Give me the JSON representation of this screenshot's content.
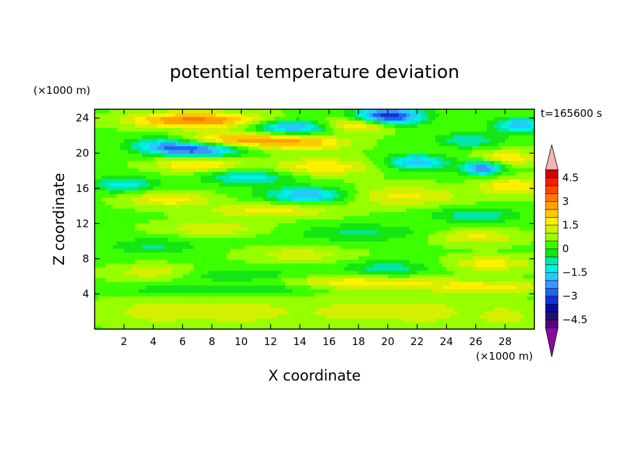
{
  "chart_data": {
    "type": "heatmap",
    "title": "potential temperature deviation",
    "xlabel": "X coordinate",
    "ylabel": "Z coordinate",
    "x_unit": "(×1000 m)",
    "y_unit": "(×1000 m)",
    "time_label": "t=165600 s",
    "xlim": [
      0,
      30
    ],
    "ylim": [
      0,
      25
    ],
    "x_ticks": [
      2,
      4,
      6,
      8,
      10,
      12,
      14,
      16,
      18,
      20,
      22,
      24,
      26,
      28
    ],
    "y_ticks": [
      4,
      8,
      12,
      16,
      20,
      24
    ],
    "colorbar": {
      "levels": [
        -5.0,
        -4.5,
        -4.0,
        -3.5,
        -3.0,
        -2.5,
        -2.0,
        -1.5,
        -1.0,
        -0.5,
        0.0,
        0.5,
        1.0,
        1.5,
        2.0,
        2.5,
        3.0,
        3.5,
        4.0,
        4.5,
        5.0
      ],
      "tick_labels": [
        "4.5",
        "3",
        "1.5",
        "0",
        "−1.5",
        "−3",
        "−4.5"
      ],
      "tick_values": [
        4.5,
        3,
        1.5,
        0,
        -1.5,
        -3,
        -4.5
      ],
      "colors": [
        "#5a0080",
        "#201070",
        "#0a0aa0",
        "#1432d2",
        "#1e64f0",
        "#3c96ff",
        "#28c8ff",
        "#00f0e6",
        "#00e6aa",
        "#14e614",
        "#3cff00",
        "#96ff00",
        "#d2f000",
        "#fff000",
        "#ffc800",
        "#ffa000",
        "#ff7800",
        "#ff4600",
        "#f01e00",
        "#d20000"
      ],
      "under_color": "#8c0aa0",
      "over_color": "#f5b4b4"
    },
    "features": [
      {
        "x": 20.0,
        "z": 24.2,
        "sx": 1.6,
        "sz": 0.7,
        "value": -4.0
      },
      {
        "x": 13.5,
        "z": 23.0,
        "sx": 2.0,
        "sz": 0.6,
        "value": -2.6
      },
      {
        "x": 29.0,
        "z": 23.2,
        "sx": 1.2,
        "sz": 0.6,
        "value": -2.4
      },
      {
        "x": 5.5,
        "z": 23.8,
        "sx": 2.5,
        "sz": 0.6,
        "value": 2.0
      },
      {
        "x": 18.0,
        "z": 23.3,
        "sx": 1.8,
        "sz": 0.6,
        "value": 2.2
      },
      {
        "x": 9.0,
        "z": 23.8,
        "sx": 2.5,
        "sz": 0.6,
        "value": 1.5
      },
      {
        "x": 10.0,
        "z": 21.6,
        "sx": 2.5,
        "sz": 0.6,
        "value": 2.3
      },
      {
        "x": 14.5,
        "z": 21.2,
        "sx": 2.0,
        "sz": 0.6,
        "value": 1.8
      },
      {
        "x": 7.0,
        "z": 20.4,
        "sx": 2.0,
        "sz": 0.6,
        "value": -3.0
      },
      {
        "x": 4.5,
        "z": 21.0,
        "sx": 1.5,
        "sz": 0.6,
        "value": -1.8
      },
      {
        "x": 25.5,
        "z": 21.5,
        "sx": 1.5,
        "sz": 0.6,
        "value": -1.4
      },
      {
        "x": 26.5,
        "z": 18.4,
        "sx": 1.0,
        "sz": 0.6,
        "value": -3.0
      },
      {
        "x": 22.0,
        "z": 19.0,
        "sx": 1.5,
        "sz": 0.6,
        "value": -2.4
      },
      {
        "x": 7.0,
        "z": 18.8,
        "sx": 2.0,
        "sz": 0.6,
        "value": 1.8
      },
      {
        "x": 15.5,
        "z": 18.5,
        "sx": 2.5,
        "sz": 0.7,
        "value": 1.5
      },
      {
        "x": 28.0,
        "z": 19.5,
        "sx": 1.5,
        "sz": 0.6,
        "value": 1.6
      },
      {
        "x": 10.5,
        "z": 17.3,
        "sx": 2.0,
        "sz": 0.6,
        "value": -1.8
      },
      {
        "x": 14.5,
        "z": 15.3,
        "sx": 2.0,
        "sz": 0.6,
        "value": -2.5
      },
      {
        "x": 2.0,
        "z": 16.5,
        "sx": 1.5,
        "sz": 0.6,
        "value": -1.7
      },
      {
        "x": 28.5,
        "z": 16.3,
        "sx": 1.5,
        "sz": 0.7,
        "value": 1.6
      },
      {
        "x": 5.0,
        "z": 14.8,
        "sx": 2.0,
        "sz": 0.6,
        "value": 1.4
      },
      {
        "x": 21.0,
        "z": 15.2,
        "sx": 3.0,
        "sz": 0.8,
        "value": 1.2
      },
      {
        "x": 12.0,
        "z": 13.5,
        "sx": 3.0,
        "sz": 0.6,
        "value": 1.3
      },
      {
        "x": 26.0,
        "z": 13.0,
        "sx": 2.0,
        "sz": 0.6,
        "value": -1.3
      },
      {
        "x": 8.0,
        "z": 11.5,
        "sx": 2.5,
        "sz": 0.6,
        "value": 1.0
      },
      {
        "x": 18.0,
        "z": 11.0,
        "sx": 3.0,
        "sz": 0.7,
        "value": -1.0
      },
      {
        "x": 26.0,
        "z": 10.5,
        "sx": 2.0,
        "sz": 0.6,
        "value": 1.2
      },
      {
        "x": 4.0,
        "z": 9.5,
        "sx": 2.0,
        "sz": 0.6,
        "value": -1.0
      },
      {
        "x": 14.0,
        "z": 8.5,
        "sx": 2.5,
        "sz": 0.6,
        "value": 0.9
      },
      {
        "x": 27.0,
        "z": 7.5,
        "sx": 2.0,
        "sz": 0.6,
        "value": 1.3
      },
      {
        "x": 20.0,
        "z": 7.0,
        "sx": 2.0,
        "sz": 0.6,
        "value": -1.2
      },
      {
        "x": 4.0,
        "z": 6.5,
        "sx": 2.0,
        "sz": 0.6,
        "value": 1.0
      },
      {
        "x": 10.0,
        "z": 6.0,
        "sx": 3.0,
        "sz": 0.6,
        "value": -1.0
      },
      {
        "x": 17.0,
        "z": 5.3,
        "sx": 5.0,
        "sz": 0.5,
        "value": 1.5
      },
      {
        "x": 27.0,
        "z": 4.8,
        "sx": 3.0,
        "sz": 0.5,
        "value": 1.2
      },
      {
        "x": 13.0,
        "z": 4.8,
        "sx": 2.5,
        "sz": 0.5,
        "value": -1.0
      },
      {
        "x": 6.0,
        "z": 4.5,
        "sx": 3.0,
        "sz": 0.4,
        "value": -0.9
      },
      {
        "x": 4.0,
        "z": 2.0,
        "sx": 2.5,
        "sz": 1.2,
        "value": 0.8
      },
      {
        "x": 10.0,
        "z": 2.0,
        "sx": 2.5,
        "sz": 1.2,
        "value": 0.8
      },
      {
        "x": 17.5,
        "z": 2.0,
        "sx": 3.0,
        "sz": 1.5,
        "value": 0.7
      },
      {
        "x": 23.0,
        "z": 2.0,
        "sx": 2.0,
        "sz": 1.2,
        "value": 0.7
      },
      {
        "x": 28.0,
        "z": 1.5,
        "sx": 1.5,
        "sz": 1.0,
        "value": 0.8
      }
    ]
  }
}
